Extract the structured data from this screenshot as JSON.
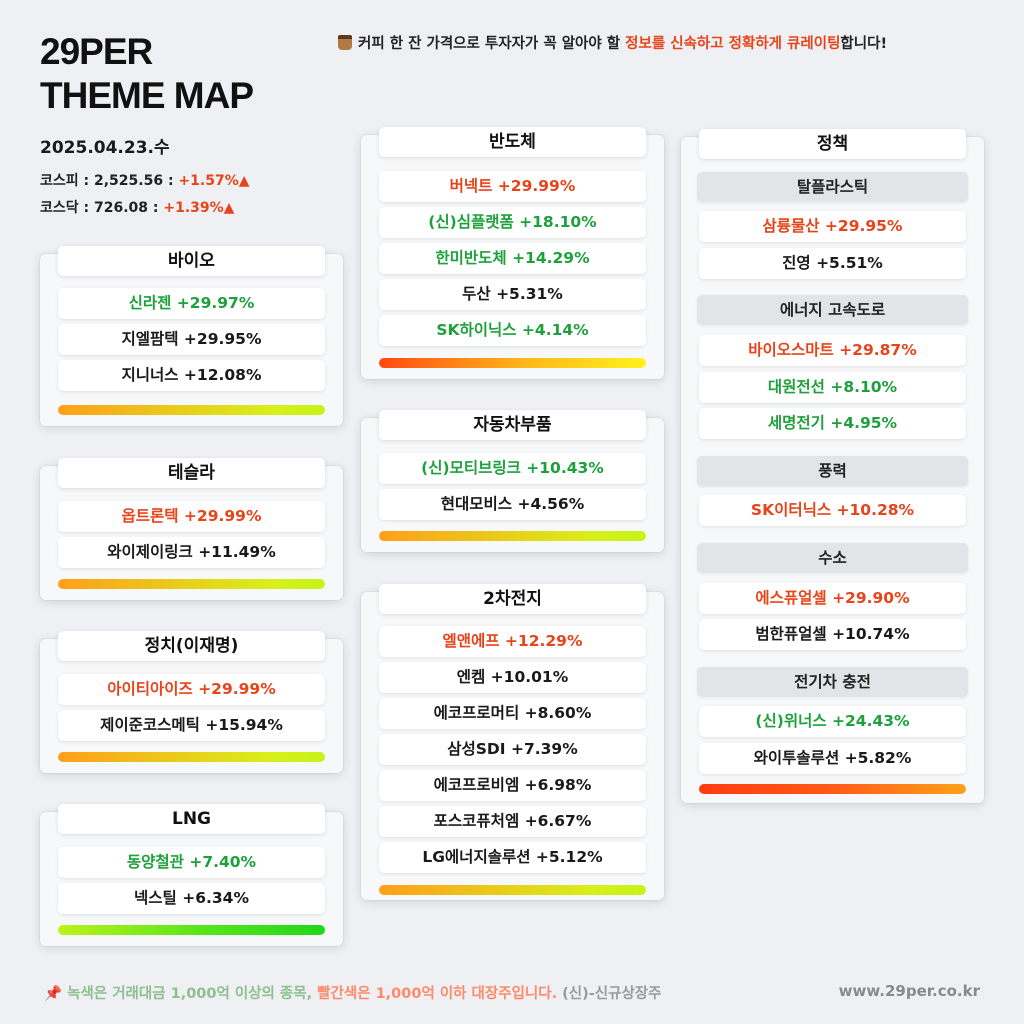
{
  "brand": {
    "line1": "29PER",
    "line2": "THEME MAP"
  },
  "tagline": {
    "part1": "커피 한 잔 가격으로 투자자가 꼭 알아야 할 ",
    "highlight": "정보를 신속하고 정확하게 큐레이팅",
    "part2": "합니다!"
  },
  "date": "2025.04.23.수",
  "kospi": {
    "label": "코스피 : 2,525.56 : ",
    "change": "+1.57%",
    "arrow": "▲"
  },
  "kosdaq": {
    "label": "코스닥 : 726.08 : ",
    "change": "+1.39%",
    "arrow": "▲"
  },
  "themes": {
    "bio": {
      "title": "바이오",
      "items": [
        {
          "text": "신라젠 +29.97%",
          "color": "green"
        },
        {
          "text": "지엘팜텍 +29.95%",
          "color": "black"
        },
        {
          "text": "지니너스 +12.08%",
          "color": "black"
        }
      ]
    },
    "tesla": {
      "title": "테슬라",
      "items": [
        {
          "text": "옵트론텍 +29.99%",
          "color": "red"
        },
        {
          "text": "와이제이링크 +11.49%",
          "color": "black"
        }
      ]
    },
    "politics": {
      "title": "정치(이재명)",
      "items": [
        {
          "text": "아이티아이즈 +29.99%",
          "color": "red"
        },
        {
          "text": "제이준코스메틱 +15.94%",
          "color": "black"
        }
      ]
    },
    "lng": {
      "title": "LNG",
      "items": [
        {
          "text": "동양철관 +7.40%",
          "color": "green"
        },
        {
          "text": "넥스틸 +6.34%",
          "color": "black"
        }
      ]
    },
    "semi": {
      "title": "반도체",
      "items": [
        {
          "text": "버넥트 +29.99%",
          "color": "red"
        },
        {
          "text": "(신)심플랫폼 +18.10%",
          "color": "green"
        },
        {
          "text": "한미반도체 +14.29%",
          "color": "green"
        },
        {
          "text": "두산 +5.31%",
          "color": "black"
        },
        {
          "text": "SK하이닉스 +4.14%",
          "color": "green"
        }
      ]
    },
    "auto": {
      "title": "자동차부품",
      "items": [
        {
          "text": "(신)모티브링크 +10.43%",
          "color": "green"
        },
        {
          "text": "현대모비스 +4.56%",
          "color": "black"
        }
      ]
    },
    "battery": {
      "title": "2차전지",
      "items": [
        {
          "text": "엘앤에프 +12.29%",
          "color": "red"
        },
        {
          "text": "엔켐 +10.01%",
          "color": "black"
        },
        {
          "text": "에코프로머티 +8.60%",
          "color": "black"
        },
        {
          "text": "삼성SDI +7.39%",
          "color": "black"
        },
        {
          "text": "에코프로비엠 +6.98%",
          "color": "black"
        },
        {
          "text": "포스코퓨처엠 +6.67%",
          "color": "black"
        },
        {
          "text": "LG에너지솔루션 +5.12%",
          "color": "black"
        }
      ]
    },
    "policy": {
      "title": "정책",
      "groups": [
        {
          "name": "탈플라스틱",
          "items": [
            {
              "text": "삼륭물산 +29.95%",
              "color": "red"
            },
            {
              "text": "진영 +5.51%",
              "color": "black"
            }
          ]
        },
        {
          "name": "에너지 고속도로",
          "items": [
            {
              "text": "바이오스마트 +29.87%",
              "color": "red"
            },
            {
              "text": "대원전선 +8.10%",
              "color": "green"
            },
            {
              "text": "세명전기 +4.95%",
              "color": "green"
            }
          ]
        },
        {
          "name": "풍력",
          "items": [
            {
              "text": "SK이터닉스 +10.28%",
              "color": "red"
            }
          ]
        },
        {
          "name": "수소",
          "items": [
            {
              "text": "에스퓨얼셀 +29.90%",
              "color": "red"
            },
            {
              "text": "범한퓨얼셀 +10.74%",
              "color": "black"
            }
          ]
        },
        {
          "name": "전기차 충전",
          "items": [
            {
              "text": "(신)위너스 +24.43%",
              "color": "green"
            },
            {
              "text": "와이투솔루션 +5.82%",
              "color": "black"
            }
          ]
        }
      ]
    }
  },
  "footer": {
    "pin": "📌",
    "green_text": "녹색은 거래대금 1,000억 이상의 종목, ",
    "red_text": "빨간색은 1,000억 이하 대장주입니다.",
    "new_text": " (신)-신규상장주",
    "url": "www.29per.co.kr"
  },
  "colors": {
    "green": "#1ea13c",
    "red": "#e8441a",
    "black": "#1a1a1a"
  }
}
